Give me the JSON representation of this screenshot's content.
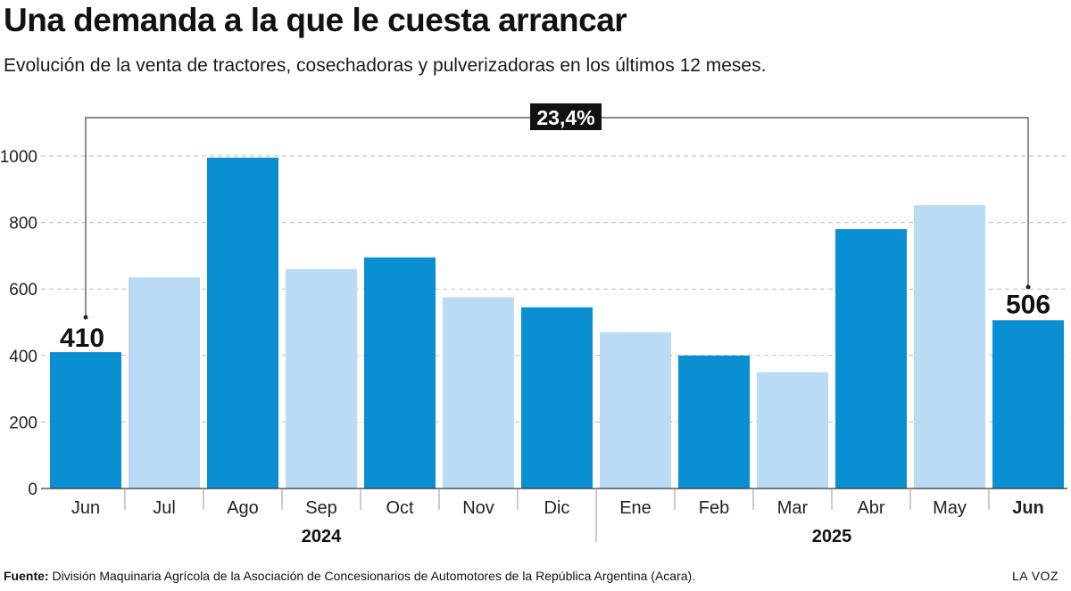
{
  "title": "Una demanda a la que le cuesta arrancar",
  "subtitle": "Evolución de la venta de tractores, cosechadoras y pulverizadoras en los últimos 12 meses.",
  "footer": {
    "source_label": "Fuente:",
    "source_text": "División Maquinaria Agrícola de la Asociación de Concesionarios de Automotores de la República Argentina (Acara).",
    "brand": "LA VOZ"
  },
  "chart_data": {
    "type": "bar",
    "categories": [
      "Jun",
      "Jul",
      "Ago",
      "Sep",
      "Oct",
      "Nov",
      "Dic",
      "Ene",
      "Feb",
      "Mar",
      "Abr",
      "May",
      "Jun"
    ],
    "values": [
      410,
      635,
      995,
      660,
      695,
      575,
      545,
      470,
      400,
      350,
      780,
      852,
      506
    ],
    "year_groups": [
      {
        "label": "2024",
        "from": 0,
        "to": 6
      },
      {
        "label": "2025",
        "from": 7,
        "to": 12
      }
    ],
    "yticks": [
      0,
      200,
      400,
      600,
      800,
      1000
    ],
    "ylim": [
      0,
      1000
    ],
    "grid": true,
    "colors": {
      "dark": "#0b8fd3",
      "light": "#b9dbf3"
    },
    "bar_shade": [
      "dark",
      "light",
      "dark",
      "light",
      "dark",
      "light",
      "dark",
      "light",
      "dark",
      "light",
      "dark",
      "light",
      "dark"
    ],
    "annotations": {
      "first_value_label": "410",
      "last_value_label": "506",
      "change_label": "23,4%"
    },
    "highlight_category_index": 12
  }
}
